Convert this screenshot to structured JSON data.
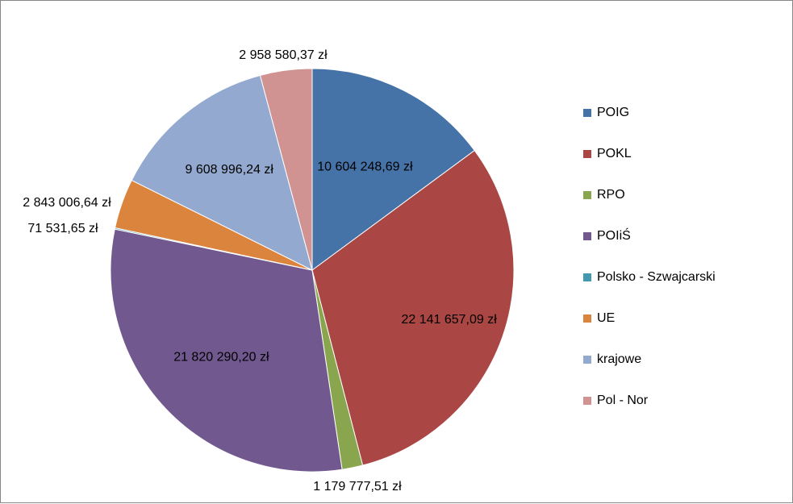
{
  "chart_data": {
    "type": "pie",
    "categories": [
      "POIG",
      "POKL",
      "RPO",
      "POIiŚ",
      "Polsko - Szwajcarski",
      "UE",
      "krajowe",
      "Pol - Nor"
    ],
    "values": [
      10604248.69,
      22141657.09,
      1179777.51,
      21820290.2,
      71531.65,
      2843006.64,
      9608996.24,
      2958580.37
    ],
    "data_labels": [
      "10 604 248,69 zł",
      "22 141 657,09 zł",
      "1 179 777,51 zł",
      "21 820 290,20 zł",
      "71 531,65 zł",
      "2 843 006,64 zł",
      "9 608 996,24 zł",
      "2 958 580,37 zł"
    ],
    "colors": [
      "#4572A7",
      "#AA4643",
      "#89A54E",
      "#71588F",
      "#4198AF",
      "#DB843D",
      "#93A9CF",
      "#D19392"
    ],
    "legend_position": "right",
    "start_angle": "12 o'clock",
    "direction": "clockwise"
  }
}
